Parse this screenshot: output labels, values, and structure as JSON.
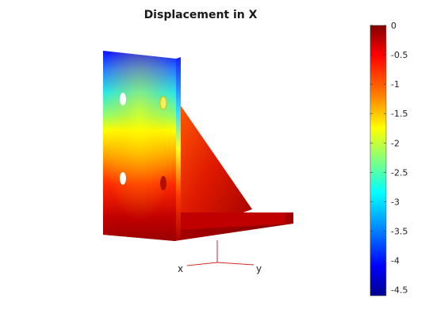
{
  "figure": {
    "title": "Displacement in X"
  },
  "axes_triad": {
    "x_label": "x",
    "y_label": "y",
    "line_color": "#d42a2a"
  },
  "colorbar": {
    "colormap": "jet",
    "range": [
      -4.6,
      0
    ],
    "ticks": [
      "0",
      "-0.5",
      "-1",
      "-1.5",
      "-2",
      "-2.5",
      "-3",
      "-3.5",
      "-4",
      "-4.5"
    ]
  },
  "colors": {
    "min": "#00008f",
    "max": "#800000"
  }
}
